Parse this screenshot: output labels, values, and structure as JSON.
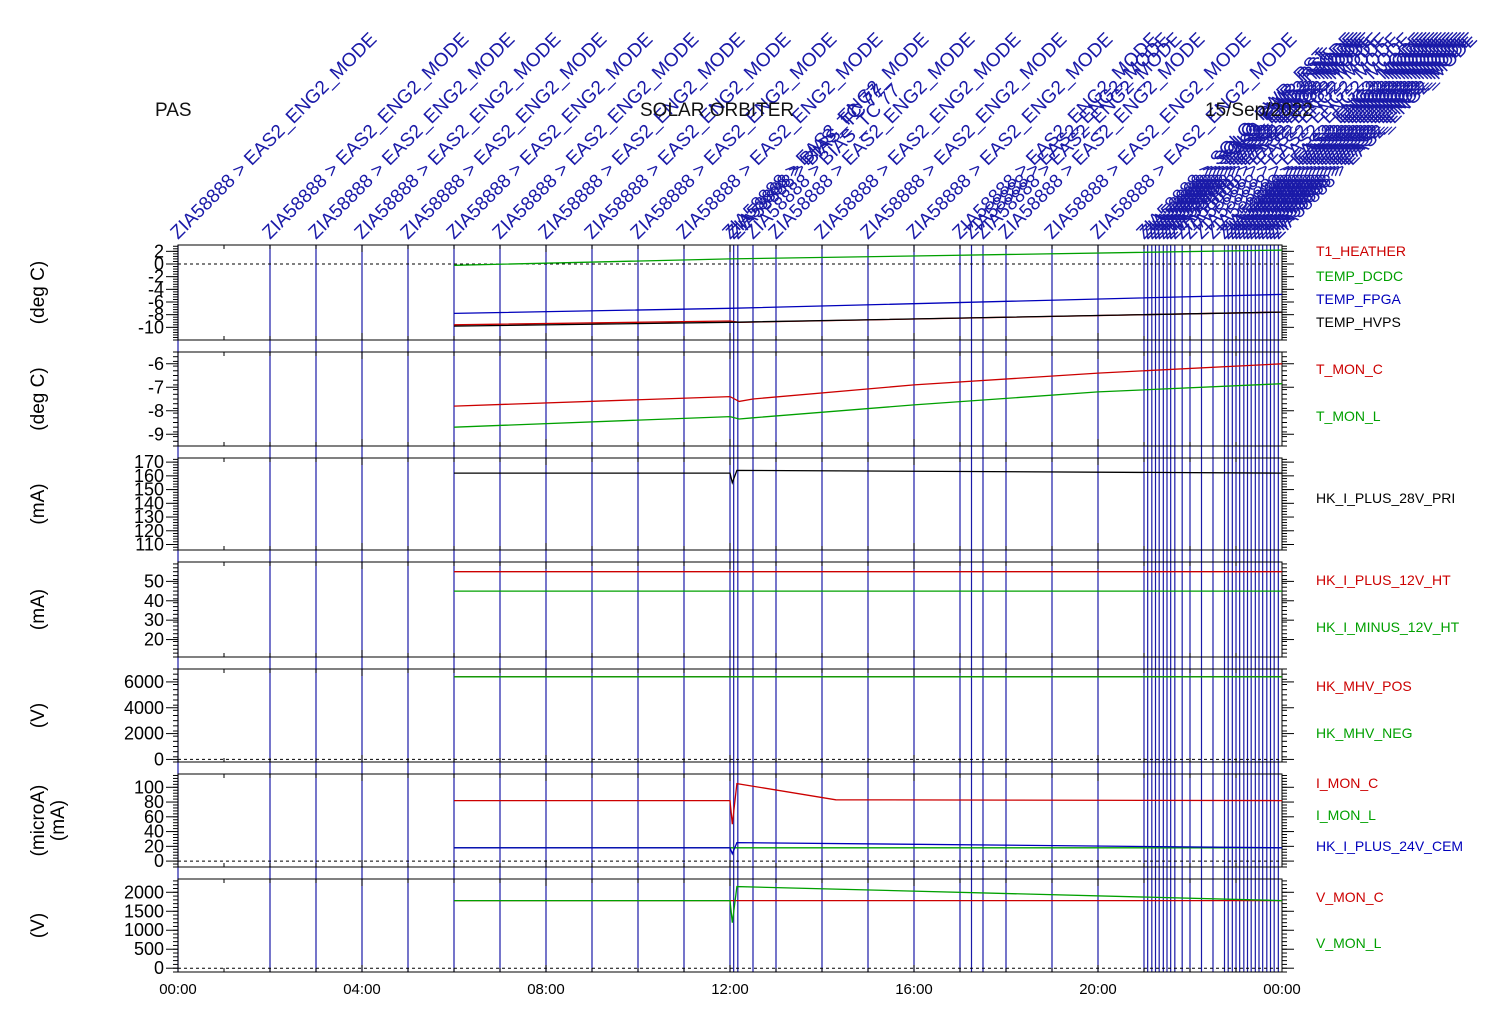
{
  "header": {
    "instrument": "PAS",
    "mission": "SOLAR ORBITER",
    "date": "15/Sep/2022"
  },
  "colors": {
    "red": "#cc0000",
    "green": "#00a000",
    "blue": "#0000bb",
    "black": "#000000",
    "event_line": "#1a1aa8"
  },
  "event_labels": {
    "mode": "ZIA58888 > EAS2_ENG2_MODE",
    "bias": "ZIA58888 > BIAS_TC 77",
    "reset": "ZIA58888 > SOLO_PWR_RST"
  },
  "chart_data": {
    "type": "line",
    "x_unit": "hours (UT)",
    "x_range": [
      0,
      24
    ],
    "x_ticks": [
      "00:00",
      "04:00",
      "08:00",
      "12:00",
      "16:00",
      "20:00",
      "00:00"
    ],
    "event_times": [
      0,
      2,
      3,
      4,
      5,
      6,
      7,
      8,
      9,
      10,
      11,
      12,
      12.08,
      12.17,
      12.5,
      13,
      14,
      15,
      16,
      17,
      17.25,
      17.5,
      18,
      19,
      20,
      21,
      21.08,
      21.17,
      21.25,
      21.33,
      21.42,
      21.5,
      21.58,
      21.67,
      21.83,
      22,
      22.25,
      22.5,
      22.75,
      22.83,
      22.92,
      23,
      23.08,
      23.17,
      23.25,
      23.33,
      23.42,
      23.5,
      23.58,
      23.67,
      23.75,
      23.83,
      23.92
    ],
    "panels": [
      {
        "ylabel": "(deg C)",
        "ylim": [
          -12,
          3
        ],
        "yticks": [
          2,
          0,
          -2,
          -4,
          -6,
          -8,
          -10
        ],
        "zero_line": true,
        "series": [
          {
            "name": "T1_HEATHER",
            "color": "red",
            "x": [
              6,
              12,
              12.2,
              24
            ],
            "y": [
              -9.6,
              -9.0,
              -9.2,
              -7.6
            ]
          },
          {
            "name": "TEMP_DCDC",
            "color": "green",
            "x": [
              6,
              12,
              24
            ],
            "y": [
              -0.2,
              0.8,
              2.2
            ]
          },
          {
            "name": "TEMP_FPGA",
            "color": "blue",
            "x": [
              6,
              12,
              24
            ],
            "y": [
              -7.8,
              -7.0,
              -4.8
            ]
          },
          {
            "name": "TEMP_HVPS",
            "color": "black",
            "x": [
              6,
              12,
              24
            ],
            "y": [
              -9.8,
              -9.2,
              -7.6
            ]
          }
        ]
      },
      {
        "ylabel": "(deg C)",
        "ylim": [
          -9.5,
          -5.5
        ],
        "yticks": [
          -6,
          -7,
          -8,
          -9
        ],
        "zero_line": false,
        "series": [
          {
            "name": "T_MON_C",
            "color": "red",
            "x": [
              6,
              12,
              12.2,
              12.5,
              16,
              20,
              24
            ],
            "y": [
              -7.8,
              -7.4,
              -7.6,
              -7.5,
              -6.9,
              -6.4,
              -6.0
            ]
          },
          {
            "name": "T_MON_L",
            "color": "green",
            "x": [
              6,
              12,
              12.2,
              12.5,
              16,
              20,
              24
            ],
            "y": [
              -8.7,
              -8.25,
              -8.35,
              -8.3,
              -7.75,
              -7.2,
              -6.85
            ]
          }
        ]
      },
      {
        "ylabel": "(mA)",
        "ylim": [
          106,
          173
        ],
        "yticks": [
          170,
          160,
          150,
          140,
          130,
          120,
          110
        ],
        "zero_line": false,
        "series": [
          {
            "name": "HK_I_PLUS_28V_PRI",
            "color": "black",
            "x": [
              6,
              12,
              12.05,
              12.15,
              24
            ],
            "y": [
              162,
              162,
              155,
              164,
              162
            ]
          }
        ]
      },
      {
        "ylabel": "(mA)",
        "ylim": [
          11,
          60
        ],
        "yticks": [
          50,
          40,
          30,
          20
        ],
        "zero_line": false,
        "series": [
          {
            "name": "HK_I_PLUS_12V_HT",
            "color": "red",
            "x": [
              6,
              24
            ],
            "y": [
              55,
              55
            ]
          },
          {
            "name": "HK_I_MINUS_12V_HT",
            "color": "green",
            "x": [
              6,
              24
            ],
            "y": [
              45,
              45
            ]
          }
        ]
      },
      {
        "ylabel": "(V)",
        "ylim": [
          -200,
          7000
        ],
        "yticks": [
          6000,
          4000,
          2000,
          0
        ],
        "zero_line": true,
        "series": [
          {
            "name": "HK_MHV_POS",
            "color": "red",
            "x": [
              6,
              24
            ],
            "y": [
              6400,
              6400
            ]
          },
          {
            "name": "HK_MHV_NEG",
            "color": "green",
            "x": [
              6,
              24
            ],
            "y": [
              6400,
              6400
            ]
          }
        ]
      },
      {
        "ylabel": "(microA)",
        "ylabel2": "(mA)",
        "ylim": [
          -8,
          118
        ],
        "yticks": [
          100,
          80,
          60,
          40,
          20,
          0
        ],
        "zero_line": true,
        "series": [
          {
            "name": "I_MON_C",
            "color": "red",
            "x": [
              6,
              12,
              12.05,
              12.15,
              14.3,
              24
            ],
            "y": [
              82,
              82,
              50,
              105,
              83,
              82
            ]
          },
          {
            "name": "I_MON_L",
            "color": "green",
            "x": [
              6,
              24
            ],
            "y": [
              18,
              18
            ]
          },
          {
            "name": "HK_I_PLUS_24V_CEM",
            "color": "blue",
            "x": [
              6,
              12,
              12.05,
              12.15,
              24
            ],
            "y": [
              18,
              18,
              10,
              25,
              18
            ]
          }
        ]
      },
      {
        "ylabel": "(V)",
        "ylim": [
          -100,
          2350
        ],
        "yticks": [
          2000,
          1500,
          1000,
          500,
          0
        ],
        "zero_line": true,
        "series": [
          {
            "name": "V_MON_C",
            "color": "red",
            "x": [
              6,
              24
            ],
            "y": [
              1780,
              1780
            ]
          },
          {
            "name": "V_MON_L",
            "color": "green",
            "x": [
              6,
              12,
              12.05,
              12.15,
              24
            ],
            "y": [
              1780,
              1780,
              1200,
              2150,
              1780
            ]
          }
        ]
      }
    ]
  }
}
